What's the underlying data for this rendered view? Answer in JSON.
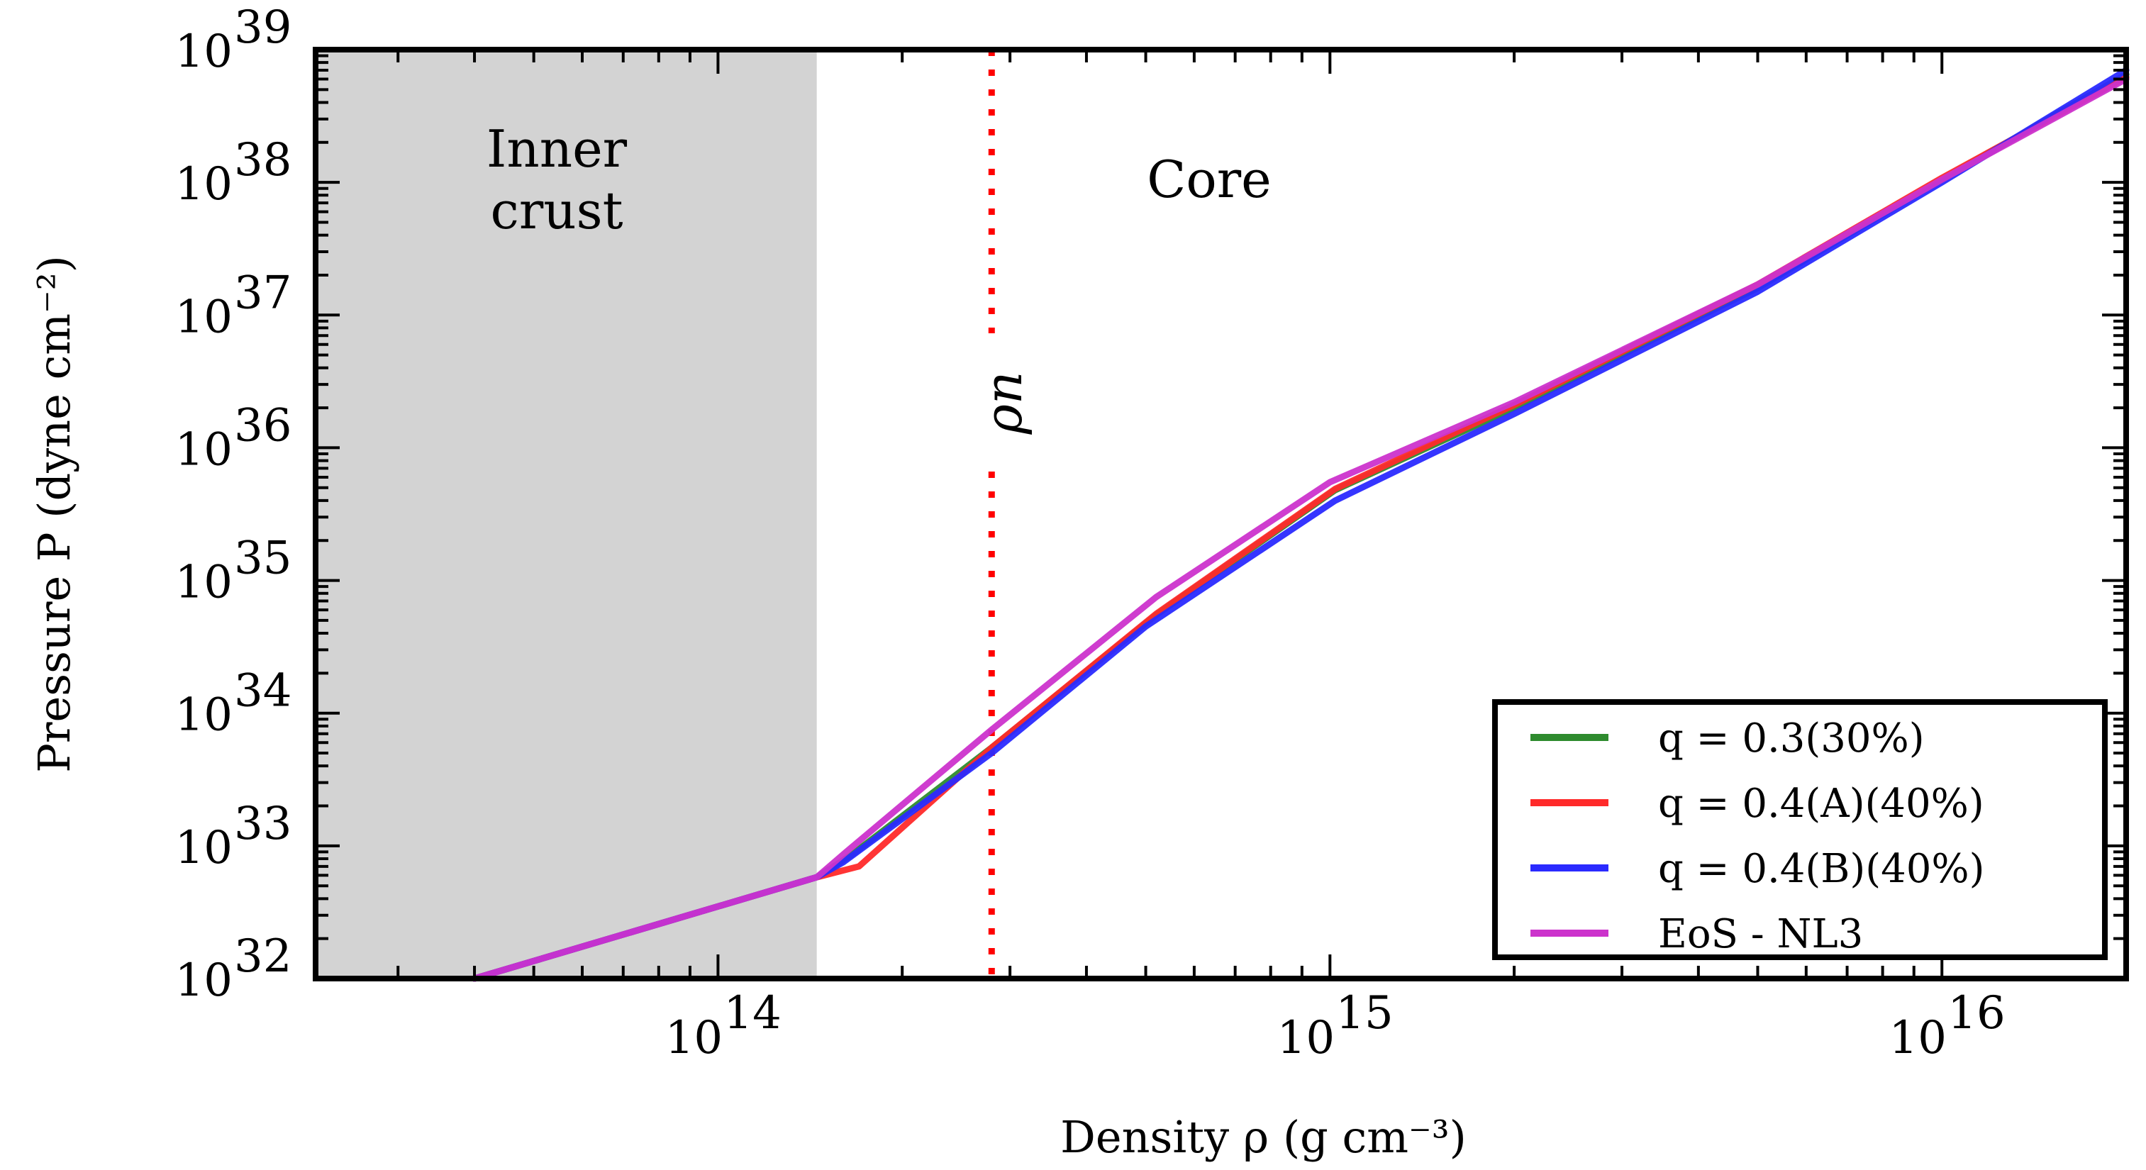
{
  "chart_data": {
    "type": "line",
    "title": "",
    "xlabel": "Density ρ (g cm⁻³)",
    "ylabel": "Pressure P (dyne cm⁻²)",
    "xscale": "log",
    "yscale": "log",
    "xlim": [
      22000000000000.0,
      2e+16
    ],
    "ylim": [
      1e+32,
      1e+39
    ],
    "x_ticks": [
      {
        "value": 100000000000000.0,
        "base": "10",
        "exp": "14"
      },
      {
        "value": 1000000000000000.0,
        "base": "10",
        "exp": "15"
      },
      {
        "value": 1e+16,
        "base": "10",
        "exp": "16"
      }
    ],
    "y_ticks": [
      {
        "value": 1e+32,
        "base": "10",
        "exp": "32"
      },
      {
        "value": 1e+33,
        "base": "10",
        "exp": "33"
      },
      {
        "value": 1e+34,
        "base": "10",
        "exp": "34"
      },
      {
        "value": 1e+35,
        "base": "10",
        "exp": "35"
      },
      {
        "value": 1e+36,
        "base": "10",
        "exp": "36"
      },
      {
        "value": 1e+37,
        "base": "10",
        "exp": "37"
      },
      {
        "value": 1e+38,
        "base": "10",
        "exp": "38"
      },
      {
        "value": 1e+39,
        "base": "10",
        "exp": "39"
      }
    ],
    "shaded_region": {
      "label_line1": "Inner",
      "label_line2": "crust",
      "x_range": [
        22000000000000.0,
        145000000000000.0
      ],
      "color": "#d3d3d3"
    },
    "core_label": "Core",
    "vline": {
      "x": 280000000000000.0,
      "label": "ρn",
      "color": "#ff0000"
    },
    "legend_position": "lower-right",
    "series": [
      {
        "name": "q = 0.3(30%)",
        "color": "#2e8b2e",
        "x": [
          40000000000000.0,
          145000000000000.0,
          165000000000000.0,
          280000000000000.0,
          520000000000000.0,
          1020000000000000.0,
          2000000000000000.0,
          5000000000000000.0,
          1e+16,
          2e+16
        ],
        "y": [
          1e+32,
          5.8e+32,
          8.5e+32,
          5.5e+33,
          5.5e+34,
          4.8e+35,
          2e+36,
          1.6e+37,
          1.05e+38,
          6.5e+38
        ]
      },
      {
        "name": "q = 0.4(A)(40%)",
        "color": "#ff2a2a",
        "x": [
          40000000000000.0,
          145000000000000.0,
          170000000000000.0,
          280000000000000.0,
          520000000000000.0,
          1020000000000000.0,
          2000000000000000.0,
          5000000000000000.0,
          1e+16,
          2e+16
        ],
        "y": [
          1e+32,
          5.8e+32,
          7e+32,
          5.5e+33,
          5.6e+34,
          4.9e+35,
          2.1e+36,
          1.7e+37,
          1.08e+38,
          6.2e+38
        ]
      },
      {
        "name": "q = 0.4(B)(40%)",
        "color": "#2a2aff",
        "x": [
          40000000000000.0,
          145000000000000.0,
          160000000000000.0,
          280000000000000.0,
          500000000000000.0,
          1020000000000000.0,
          2000000000000000.0,
          5000000000000000.0,
          1e+16,
          2e+16
        ],
        "y": [
          1e+32,
          5.8e+32,
          7.5e+32,
          5e+33,
          4.5e+34,
          4e+35,
          1.8e+36,
          1.5e+37,
          1e+38,
          7e+38
        ]
      },
      {
        "name": "EoS - NL3",
        "color": "#cc33cc",
        "x": [
          40000000000000.0,
          145000000000000.0,
          162000000000000.0,
          280000000000000.0,
          520000000000000.0,
          1000000000000000.0,
          2000000000000000.0,
          5000000000000000.0,
          1e+16,
          2e+16
        ],
        "y": [
          1e+32,
          5.8e+32,
          9e+32,
          7.5e+33,
          7.5e+34,
          5.5e+35,
          2.2e+36,
          1.7e+37,
          1.05e+38,
          6e+38
        ]
      }
    ]
  }
}
